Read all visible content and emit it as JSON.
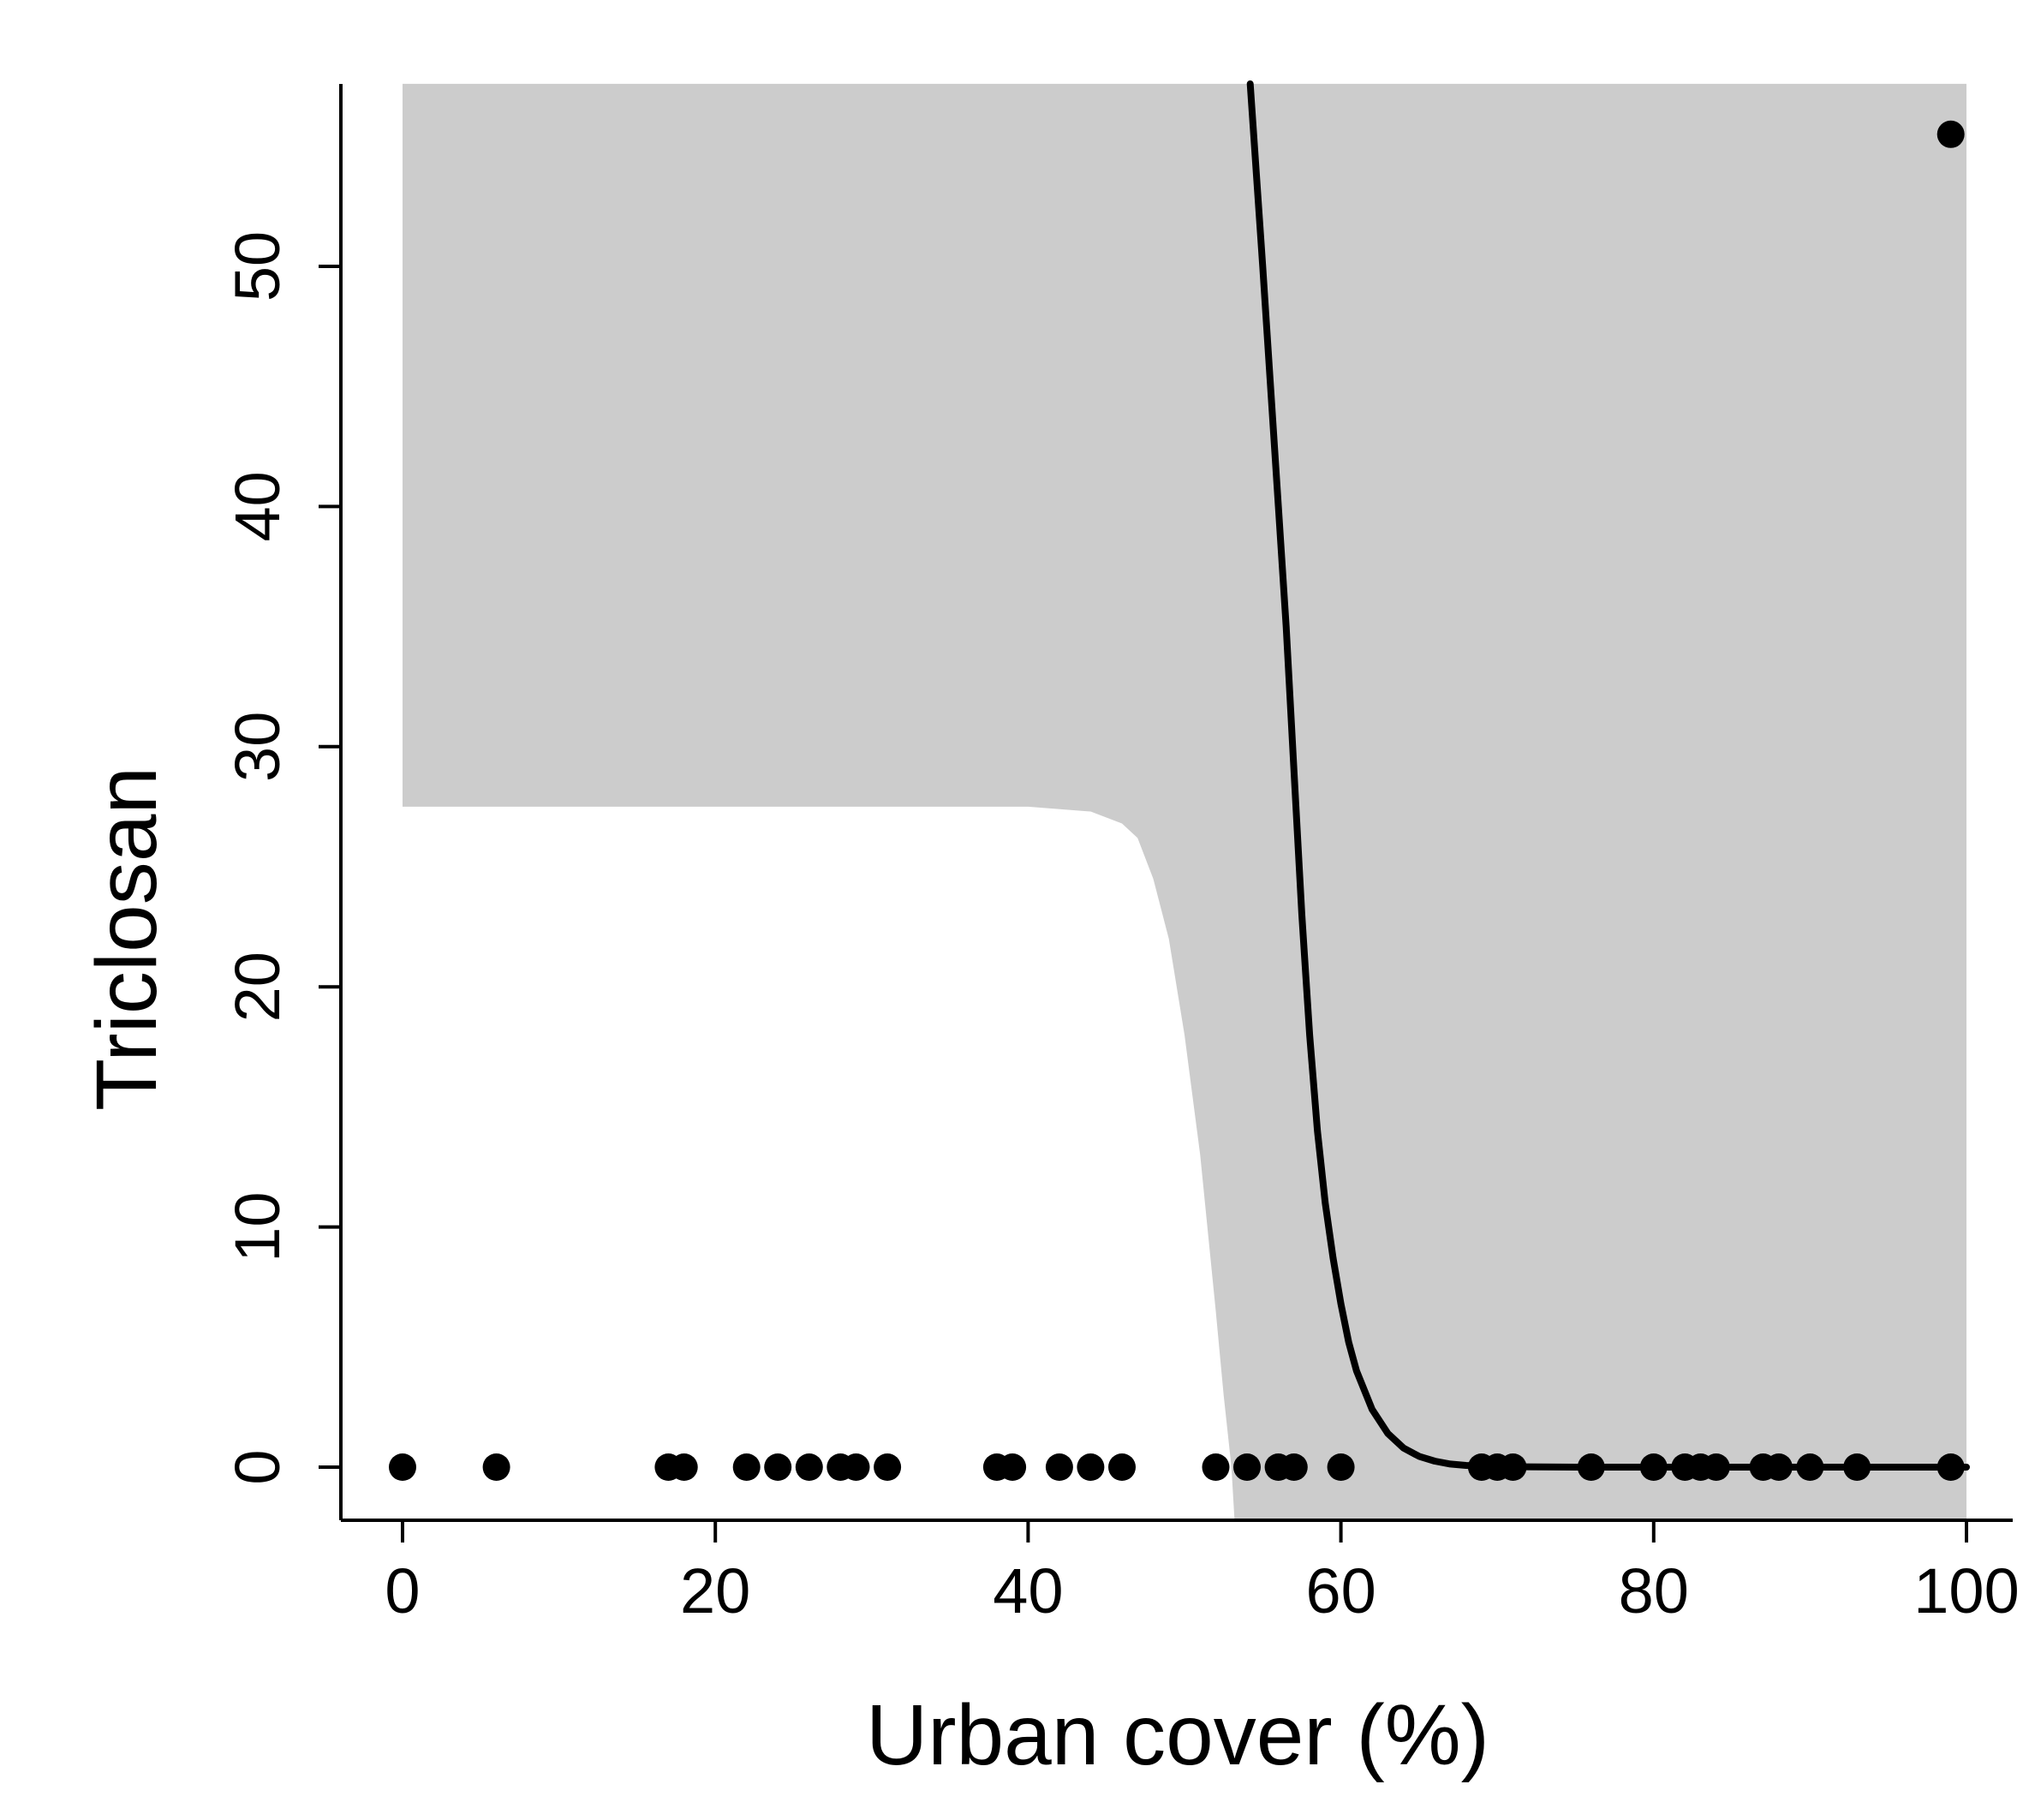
{
  "chart_data": {
    "type": "scatter",
    "xlabel": "Urban cover (%)",
    "ylabel": "Triclosan",
    "xlim": [
      -4,
      102
    ],
    "ylim": [
      -2.2,
      57.6
    ],
    "x_ticks": [
      0,
      20,
      40,
      60,
      80,
      100
    ],
    "y_ticks": [
      0,
      10,
      20,
      30,
      40,
      50
    ],
    "x_tick_labels": [
      "0",
      "20",
      "40",
      "60",
      "80",
      "100"
    ],
    "y_tick_labels": [
      "0",
      "10",
      "20",
      "30",
      "40",
      "50"
    ],
    "grid": false,
    "colors": {
      "points": "#000000",
      "line": "#000000",
      "band": "#cccccc"
    },
    "points": {
      "x": [
        0,
        6,
        17,
        18,
        22,
        24,
        26,
        28,
        29,
        31,
        38,
        39,
        42,
        44,
        46,
        52,
        54,
        56,
        57,
        60,
        69,
        70,
        71,
        76,
        80,
        82,
        83,
        84,
        87,
        88,
        90,
        93,
        99,
        99
      ],
      "y": [
        0,
        0,
        0,
        0,
        0,
        0,
        0,
        0,
        0,
        0,
        0,
        0,
        0,
        0,
        0,
        0,
        0,
        0,
        0,
        0,
        0,
        0,
        0,
        0,
        0,
        0,
        0,
        0,
        0,
        0,
        0,
        0,
        0,
        55.5
      ]
    },
    "fit_line": {
      "x": [
        54.2,
        55,
        56,
        56.5,
        57,
        57.5,
        58,
        58.5,
        59,
        59.5,
        60,
        60.5,
        61,
        62,
        63,
        64,
        65,
        66,
        67,
        68,
        70,
        75,
        80,
        90,
        100
      ],
      "y": [
        57.6,
        50,
        40,
        35,
        29,
        23,
        18,
        14,
        11,
        8.7,
        6.8,
        5.2,
        4.0,
        2.4,
        1.4,
        0.8,
        0.45,
        0.25,
        0.13,
        0.07,
        0.02,
        0,
        0,
        0,
        0
      ]
    },
    "confidence_band": {
      "x": [
        0,
        40,
        44,
        46,
        47,
        48,
        49,
        50,
        51,
        52,
        52.5,
        53,
        53.2,
        100
      ],
      "lower": [
        27.5,
        27.5,
        27.3,
        26.8,
        26.2,
        24.5,
        22,
        18,
        13,
        6.5,
        3,
        0,
        -2.2,
        -2.2
      ],
      "upper": [
        57.6,
        57.6,
        57.6,
        57.6,
        57.6,
        57.6,
        57.6,
        57.6,
        57.6,
        57.6,
        57.6,
        57.6,
        57.6,
        57.6
      ]
    }
  }
}
